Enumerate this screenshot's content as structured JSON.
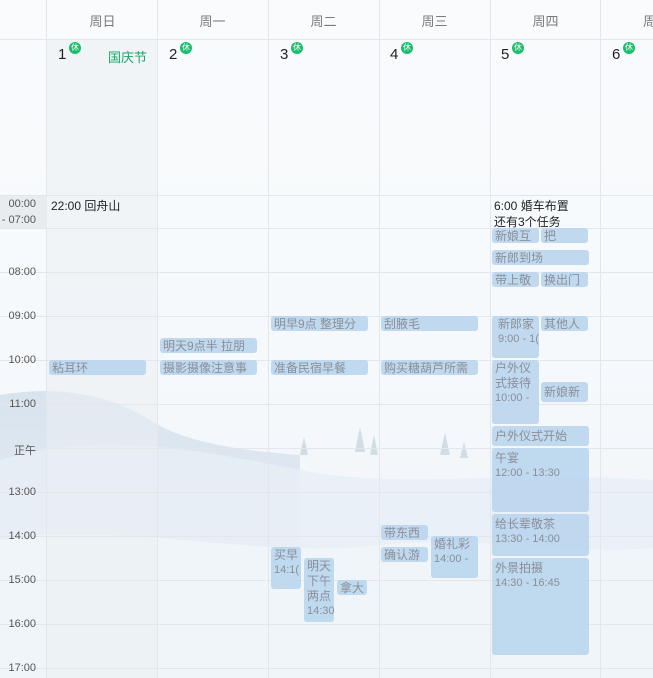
{
  "weekdays": [
    "周日",
    "周一",
    "周二",
    "周三",
    "周四",
    "周"
  ],
  "dates": [
    "1",
    "2",
    "3",
    "4",
    "5",
    "6"
  ],
  "rest_badge": "休",
  "holiday_label": "国庆节",
  "allday": {
    "label_top": "00:00",
    "label_bottom": "- 07:00"
  },
  "time_labels": [
    "08:00",
    "09:00",
    "10:00",
    "11:00",
    "正午",
    "13:00",
    "14:00",
    "15:00",
    "16:00",
    "17:00"
  ],
  "allday_events": {
    "sun": "22:00 回舟山",
    "thu_line1": "6:00 婚车布置",
    "thu_line2": "还有3个任务"
  },
  "events": {
    "xinniang_hu": "新娘互",
    "ba": "把",
    "xinlang_daochang": "新郎到场",
    "daishang_jing": "带上敬",
    "huan_chumen": "换出门",
    "zhan_erhuan": "粘耳环",
    "sheying": "摄影摄像注意事",
    "laban": "明天9点半 拉朋",
    "zhengli": "明早9点 整理分",
    "minsu": "准备民宿早餐",
    "guamaomao": "刮腋毛",
    "tanghulu": "购买糖葫芦所需",
    "xinlang_jia": "新郎家",
    "xinlang_jia_time": "9:00 - 1(",
    "qitaren": "其他人",
    "huwai_jiedai_1": "户外仪",
    "huwai_jiedai_2": "式接待",
    "huwai_jiedai_time": "10:00 -",
    "xinniang_xin": "新娘新",
    "huwai_kaishi": "户外仪式开始",
    "wuyan": "午宴",
    "wuyan_time": "12:00 - 13:30",
    "zhangbei": "给长辈敬茶",
    "zhangbei_time": "13:30 - 14:00",
    "waijing": "外景拍摄",
    "waijing_time": "14:30 - 16:45",
    "dai_dongxi": "带东西",
    "queren_you": "确认游",
    "hunli_cai": "婚礼彩",
    "hunli_cai_time": "14:00 -",
    "maizao": "买早",
    "maizao_time": "14:1(",
    "mingtian_1": "明天",
    "mingtian_2": "下午",
    "mingtian_3": "两点",
    "mingtian_time": "14:30",
    "nada": "拿大"
  }
}
